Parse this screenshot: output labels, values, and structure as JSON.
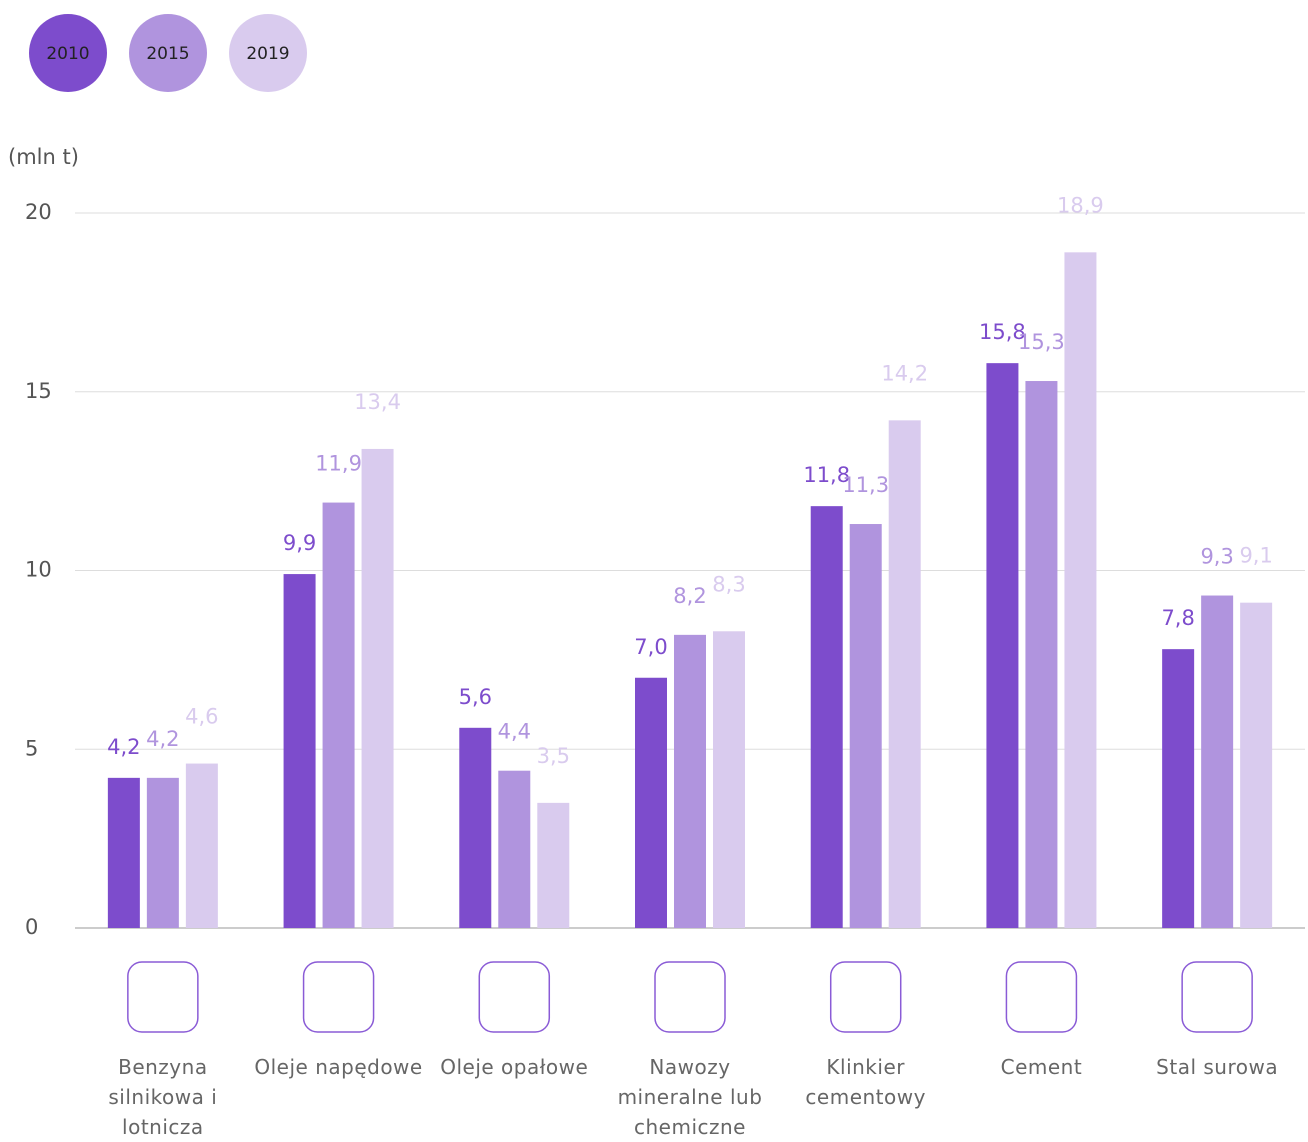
{
  "chart_data": {
    "type": "bar",
    "y_label": "(mln t)",
    "categories": [
      "Benzyna silnikowa i lotnicza",
      "Oleje napędowe",
      "Oleje opałowe",
      "Nawozy mineralne lub chemiczne",
      "Klinkier cementowy",
      "Cement",
      "Stal surowa"
    ],
    "series": [
      {
        "name": "2010",
        "color": "#7d4ccc",
        "values": [
          4.2,
          9.9,
          5.6,
          7.0,
          11.8,
          15.8,
          7.8
        ],
        "value_labels": [
          "4,2",
          "9,9",
          "5,6",
          "7,0",
          "11,8",
          "15,8",
          "7,8"
        ]
      },
      {
        "name": "2015",
        "color": "#b094de",
        "values": [
          4.2,
          11.9,
          4.4,
          8.2,
          11.3,
          15.3,
          9.3
        ],
        "value_labels": [
          "4,2",
          "11,9",
          "4,4",
          "8,2",
          "11,3",
          "15,3",
          "9,3"
        ]
      },
      {
        "name": "2019",
        "color": "#d9cbee",
        "values": [
          4.6,
          13.4,
          3.5,
          8.3,
          14.2,
          18.9,
          9.1
        ],
        "value_labels": [
          "4,6",
          "13,4",
          "3,5",
          "8,3",
          "14,2",
          "18,9",
          "9,1"
        ]
      }
    ],
    "ylim": [
      0,
      20
    ],
    "yticks": [
      0,
      5,
      10,
      15,
      20
    ],
    "grid": true,
    "legend": "top-left"
  }
}
